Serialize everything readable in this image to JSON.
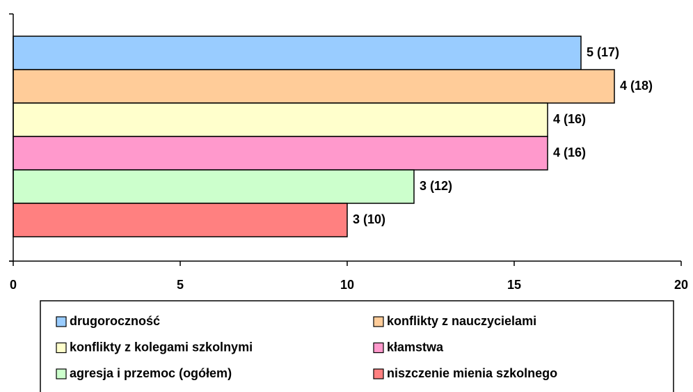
{
  "chart_data": {
    "type": "barh",
    "categories": [
      null
    ],
    "series": [
      {
        "name": "drugoroczność",
        "color": "#99ccff",
        "values": [
          17
        ],
        "value_labels": [
          "5 (17)"
        ]
      },
      {
        "name": "konflikty z nauczycielami",
        "color": "#ffcc99",
        "values": [
          18
        ],
        "value_labels": [
          "4 (18)"
        ]
      },
      {
        "name": "konflikty z kolegami szkolnymi",
        "color": "#ffffcc",
        "values": [
          16
        ],
        "value_labels": [
          "4 (16)"
        ]
      },
      {
        "name": "kłamstwa",
        "color": "#ff99cc",
        "values": [
          16
        ],
        "value_labels": [
          "4 (16)"
        ]
      },
      {
        "name": "agresja i przemoc (ogółem)",
        "color": "#ccffcc",
        "values": [
          12
        ],
        "value_labels": [
          "3 (12)"
        ]
      },
      {
        "name": "niszczenie mienia szkolnego",
        "color": "#ff8080",
        "values": [
          10
        ],
        "value_labels": [
          "3 (10)"
        ]
      }
    ],
    "xlim": [
      0,
      20
    ],
    "xticks": [
      0,
      5,
      10,
      15,
      20
    ],
    "grid": false,
    "legend": "bottom"
  }
}
